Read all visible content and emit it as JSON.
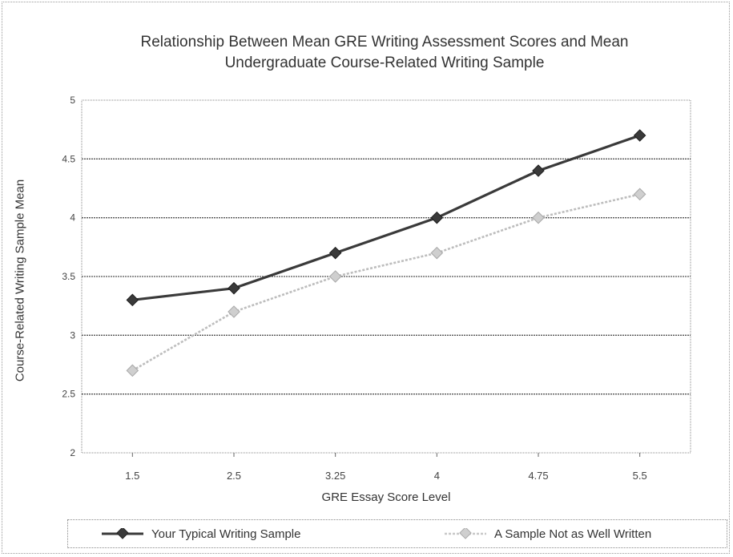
{
  "chart_data": {
    "type": "line",
    "title_line1": "Relationship Between Mean GRE Writing Assessment Scores and Mean",
    "title_line2": "Undergraduate Course-Related Writing Sample",
    "xlabel": "GRE Essay Score Level",
    "ylabel": "Course-Related Writing Sample Mean",
    "categories": [
      "1.5",
      "2.5",
      "3.25",
      "4",
      "4.75",
      "5.5"
    ],
    "ylim": [
      2,
      5
    ],
    "yticks": [
      2,
      2.5,
      3,
      3.5,
      4,
      4.5,
      5
    ],
    "ytick_labels": [
      "2",
      "2.5",
      "3",
      "3.5",
      "4",
      "4.5",
      "5"
    ],
    "grid": true,
    "legend_position": "bottom",
    "series": [
      {
        "name": "Your Typical Writing Sample",
        "values": [
          3.3,
          3.4,
          3.7,
          4.0,
          4.4,
          4.7
        ],
        "color": "#3a3a3a"
      },
      {
        "name": "A Sample Not as Well Written",
        "values": [
          2.7,
          3.2,
          3.5,
          3.7,
          4.0,
          4.2
        ],
        "color": "#bdbdbd"
      }
    ]
  }
}
